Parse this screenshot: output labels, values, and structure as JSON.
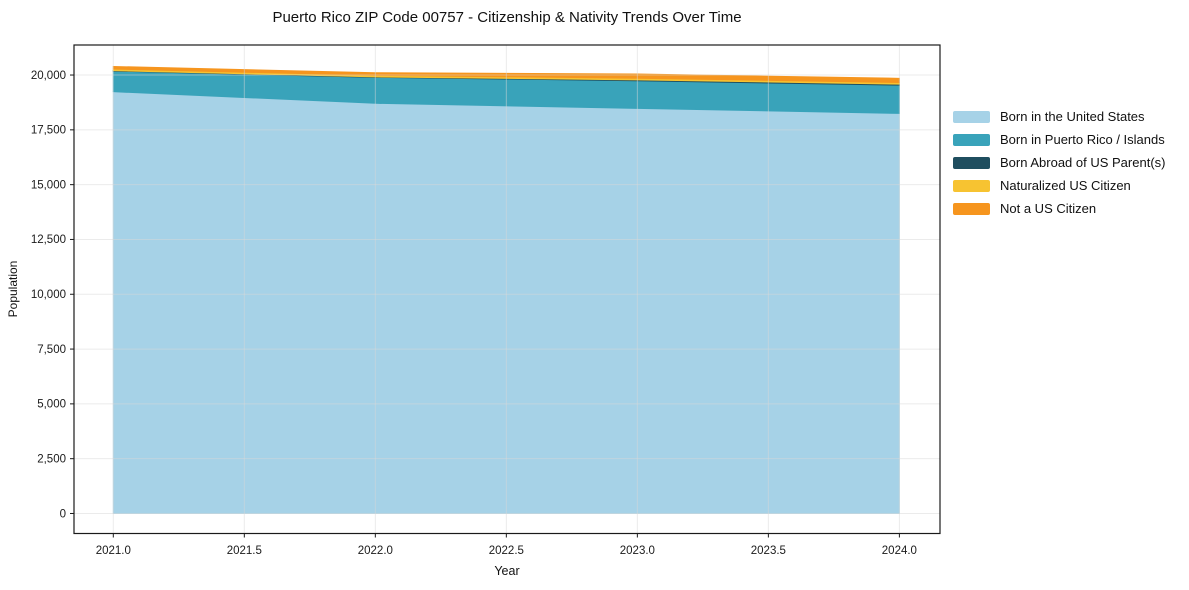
{
  "chart_data": {
    "type": "area",
    "stacked": true,
    "title": "Puerto Rico ZIP Code 00757 - Citizenship & Nativity Trends Over Time",
    "xlabel": "Year",
    "ylabel": "Population",
    "x": [
      2021,
      2022,
      2023,
      2024
    ],
    "series": [
      {
        "name": "Born in the United States",
        "color": "#A6D2E7",
        "values": [
          19240,
          18710,
          18480,
          18250
        ]
      },
      {
        "name": "Born in Puerto Rico / Islands",
        "color": "#39A3BA",
        "values": [
          940,
          1185,
          1260,
          1290
        ]
      },
      {
        "name": "Born Abroad of US Parent(s)",
        "color": "#1F4E5F",
        "values": [
          20,
          20,
          40,
          45
        ]
      },
      {
        "name": "Naturalized US Citizen",
        "color": "#F7C331",
        "values": [
          75,
          70,
          75,
          75
        ]
      },
      {
        "name": "Not a US Citizen",
        "color": "#F6951E",
        "values": [
          115,
          120,
          190,
          190
        ]
      }
    ],
    "totals_by_year": [
      20390,
      20105,
      20045,
      19850
    ],
    "xlim": [
      2020.85,
      2024.155
    ],
    "ylim": [
      -913,
      21370
    ],
    "xticks": [
      2021.0,
      2021.5,
      2022.0,
      2022.5,
      2023.0,
      2023.5,
      2024.0
    ],
    "xtick_labels": [
      "2021.0",
      "2021.5",
      "2022.0",
      "2022.5",
      "2023.0",
      "2023.5",
      "2024.0"
    ],
    "yticks": [
      0,
      2500,
      5000,
      7500,
      10000,
      12500,
      15000,
      17500,
      20000
    ],
    "ytick_labels": [
      "0",
      "2,500",
      "5,000",
      "7,500",
      "10,000",
      "12,500",
      "15,000",
      "17,500",
      "20,000"
    ],
    "grid": true,
    "legend_position": "upper-right-outside",
    "colors": {
      "background": "#ffffff",
      "grid": "#d8d8d8",
      "spine": "#1a1a1a",
      "text": "#1a1a1a"
    }
  }
}
